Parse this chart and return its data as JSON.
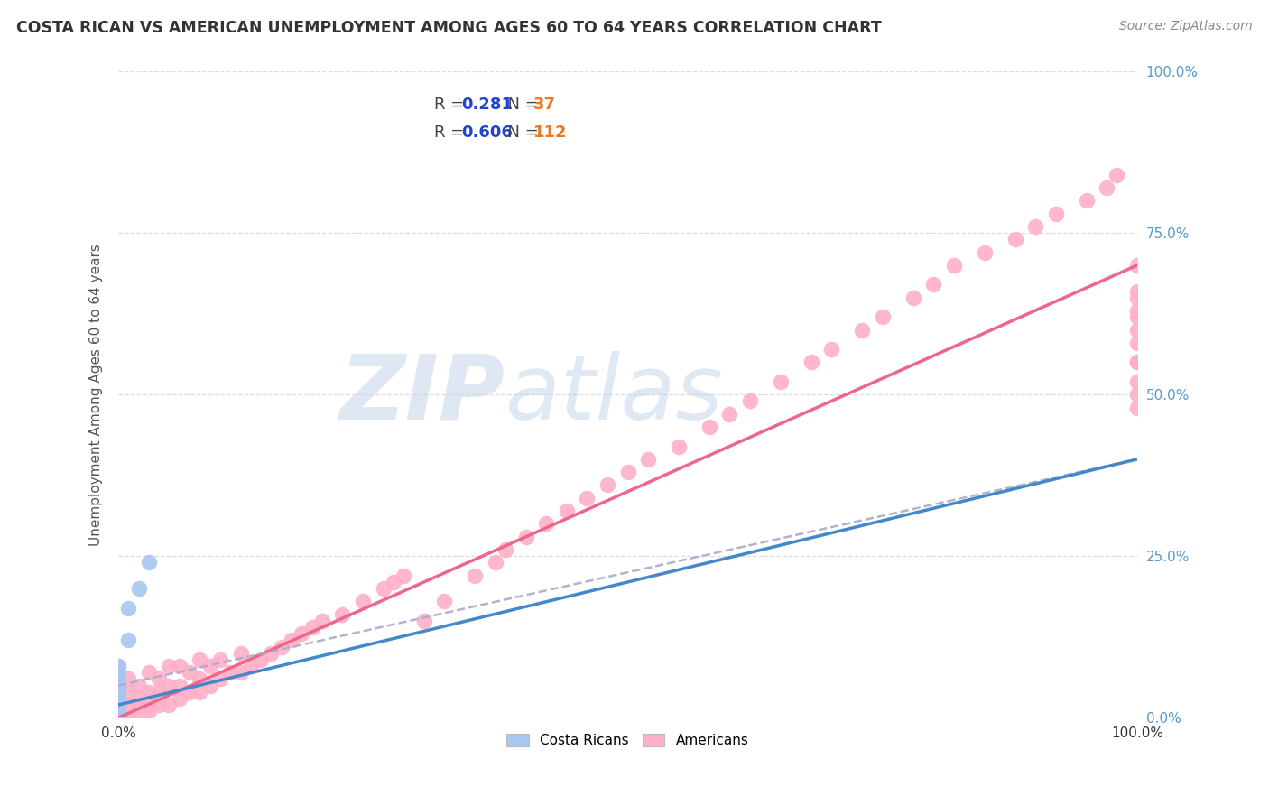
{
  "title": "COSTA RICAN VS AMERICAN UNEMPLOYMENT AMONG AGES 60 TO 64 YEARS CORRELATION CHART",
  "source": "Source: ZipAtlas.com",
  "ylabel": "Unemployment Among Ages 60 to 64 years",
  "xlim": [
    0.0,
    1.0
  ],
  "ylim": [
    0.0,
    1.0
  ],
  "xtick_labels": [
    "0.0%",
    "100.0%"
  ],
  "ytick_labels": [
    "0.0%",
    "25.0%",
    "50.0%",
    "75.0%",
    "100.0%"
  ],
  "ytick_positions": [
    0.0,
    0.25,
    0.5,
    0.75,
    1.0
  ],
  "watermark_zip": "ZIP",
  "watermark_atlas": "atlas",
  "costa_rican_R": "0.281",
  "costa_rican_N": "37",
  "american_R": "0.606",
  "american_N": "112",
  "cr_color": "#a8c8f0",
  "am_color": "#ffb0c8",
  "cr_line_color": "#4488cc",
  "am_line_color": "#ee6688",
  "cr_dash_color": "#aaccee",
  "background_color": "#ffffff",
  "grid_color": "#dddddd",
  "title_color": "#333333",
  "source_color": "#888888",
  "ylabel_color": "#555555",
  "tick_color": "#5599cc",
  "legend_R_color": "#2244cc",
  "legend_N_color": "#ee7722",
  "title_fontsize": 12.5,
  "label_fontsize": 11,
  "tick_fontsize": 11,
  "source_fontsize": 10,
  "legend_fontsize": 13,
  "cr_scatter_x": [
    0.0,
    0.0,
    0.0,
    0.0,
    0.0,
    0.0,
    0.0,
    0.0,
    0.0,
    0.0,
    0.0,
    0.0,
    0.0,
    0.0,
    0.0,
    0.0,
    0.0,
    0.0,
    0.0,
    0.0,
    0.0,
    0.0,
    0.0,
    0.0,
    0.0,
    0.01,
    0.01,
    0.02,
    0.03,
    0.0,
    0.0,
    0.0,
    0.0,
    0.0,
    0.0,
    0.0,
    0.0
  ],
  "cr_scatter_y": [
    0.0,
    0.0,
    0.0,
    0.0,
    0.0,
    0.0,
    0.0,
    0.0,
    0.0,
    0.0,
    0.01,
    0.01,
    0.02,
    0.02,
    0.03,
    0.03,
    0.04,
    0.04,
    0.05,
    0.06,
    0.07,
    0.08,
    0.0,
    0.0,
    0.0,
    0.12,
    0.17,
    0.2,
    0.24,
    0.0,
    0.0,
    0.0,
    0.0,
    0.0,
    0.0,
    0.0,
    0.0
  ],
  "am_scatter_x": [
    0.0,
    0.0,
    0.0,
    0.0,
    0.0,
    0.0,
    0.0,
    0.0,
    0.0,
    0.0,
    0.0,
    0.0,
    0.0,
    0.0,
    0.0,
    0.0,
    0.0,
    0.0,
    0.0,
    0.0,
    0.0,
    0.0,
    0.01,
    0.01,
    0.01,
    0.01,
    0.01,
    0.02,
    0.02,
    0.02,
    0.02,
    0.03,
    0.03,
    0.03,
    0.03,
    0.04,
    0.04,
    0.04,
    0.05,
    0.05,
    0.05,
    0.06,
    0.06,
    0.06,
    0.07,
    0.07,
    0.08,
    0.08,
    0.08,
    0.09,
    0.09,
    0.1,
    0.1,
    0.11,
    0.12,
    0.12,
    0.13,
    0.14,
    0.15,
    0.16,
    0.17,
    0.18,
    0.19,
    0.2,
    0.22,
    0.24,
    0.26,
    0.27,
    0.28,
    0.3,
    0.32,
    0.35,
    0.37,
    0.38,
    0.4,
    0.42,
    0.44,
    0.46,
    0.48,
    0.5,
    0.52,
    0.55,
    0.58,
    0.6,
    0.62,
    0.65,
    0.68,
    0.7,
    0.73,
    0.75,
    0.78,
    0.8,
    0.82,
    0.85,
    0.88,
    0.9,
    0.92,
    0.95,
    0.97,
    0.98,
    1.0,
    1.0,
    1.0,
    1.0,
    1.0,
    1.0,
    1.0,
    1.0,
    1.0,
    1.0,
    1.0,
    1.0
  ],
  "am_scatter_y": [
    0.0,
    0.0,
    0.0,
    0.0,
    0.0,
    0.0,
    0.0,
    0.0,
    0.0,
    0.0,
    0.01,
    0.01,
    0.01,
    0.02,
    0.02,
    0.03,
    0.03,
    0.04,
    0.04,
    0.05,
    0.06,
    0.08,
    0.0,
    0.01,
    0.02,
    0.04,
    0.06,
    0.01,
    0.02,
    0.03,
    0.05,
    0.01,
    0.02,
    0.04,
    0.07,
    0.02,
    0.04,
    0.06,
    0.02,
    0.05,
    0.08,
    0.03,
    0.05,
    0.08,
    0.04,
    0.07,
    0.04,
    0.06,
    0.09,
    0.05,
    0.08,
    0.06,
    0.09,
    0.07,
    0.07,
    0.1,
    0.08,
    0.09,
    0.1,
    0.11,
    0.12,
    0.13,
    0.14,
    0.15,
    0.16,
    0.18,
    0.2,
    0.21,
    0.22,
    0.15,
    0.18,
    0.22,
    0.24,
    0.26,
    0.28,
    0.3,
    0.32,
    0.34,
    0.36,
    0.38,
    0.4,
    0.42,
    0.45,
    0.47,
    0.49,
    0.52,
    0.55,
    0.57,
    0.6,
    0.62,
    0.65,
    0.67,
    0.7,
    0.72,
    0.74,
    0.76,
    0.78,
    0.8,
    0.82,
    0.84,
    0.55,
    0.6,
    0.63,
    0.66,
    0.58,
    0.62,
    0.65,
    0.5,
    0.55,
    0.48,
    0.52,
    0.7
  ]
}
